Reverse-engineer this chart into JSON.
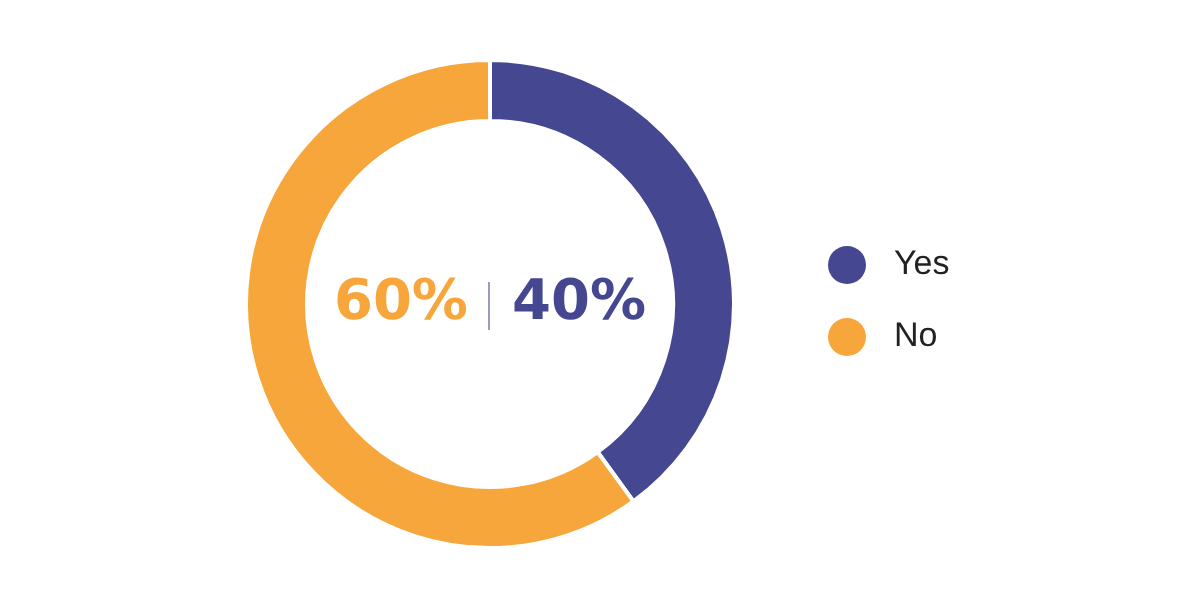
{
  "chart_data": {
    "type": "donut",
    "categories": [
      "Yes",
      "No"
    ],
    "values": [
      40,
      60
    ],
    "colors": [
      "#454891",
      "#f7a63c"
    ],
    "legend": "right",
    "value_labels": [
      "40%",
      "60%"
    ]
  }
}
